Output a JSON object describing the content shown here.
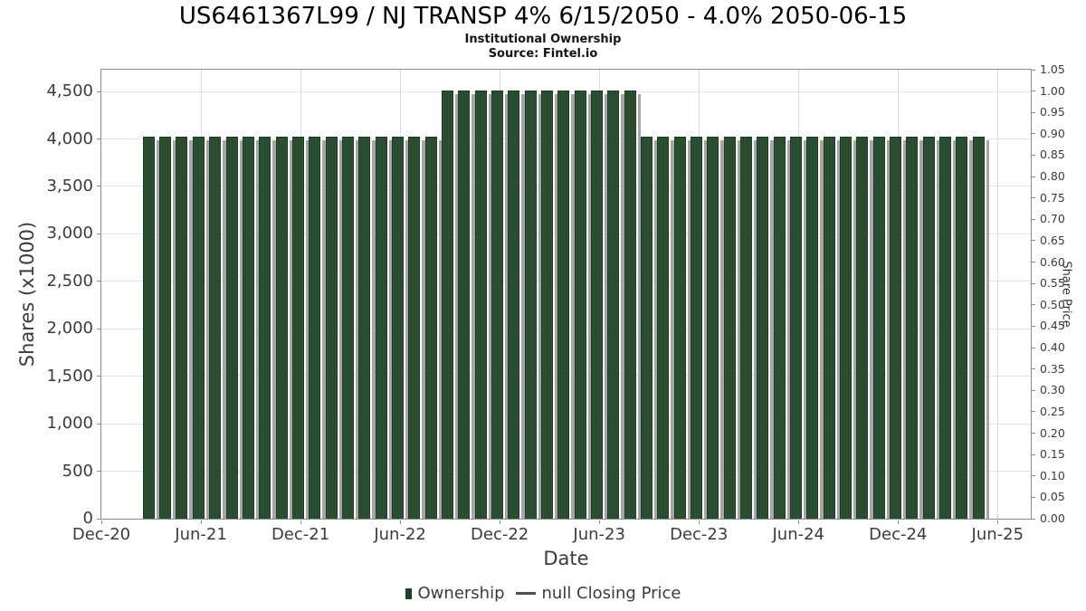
{
  "header": {
    "title": "US6461367L99 / NJ TRANSP 4% 6/15/2050 - 4.0% 2050-06-15",
    "subtitle": "Institutional Ownership",
    "source": "Source: Fintel.io"
  },
  "chart_data": {
    "type": "bar",
    "title": "US6461367L99 / NJ TRANSP 4% 6/15/2050 - 4.0% 2050-06-15",
    "subtitle": "Institutional Ownership",
    "source": "Source: Fintel.io",
    "xlabel": "Date",
    "ylabel_left": "Shares (x1000)",
    "ylabel_right": "Share Price",
    "grid": true,
    "legend_position": "bottom-center",
    "x_axis": {
      "tick_labels": [
        "Dec-20",
        "Jun-21",
        "Dec-21",
        "Jun-22",
        "Dec-22",
        "Jun-23",
        "Dec-23",
        "Jun-24",
        "Dec-24",
        "Jun-25"
      ],
      "tick_month_index": [
        0,
        6,
        12,
        18,
        24,
        30,
        36,
        42,
        48,
        54
      ],
      "months_span": 56
    },
    "y_axis_left": {
      "lim": [
        0,
        4730
      ],
      "tick_values": [
        0,
        500,
        1000,
        1500,
        2000,
        2500,
        3000,
        3500,
        4000,
        4500
      ],
      "tick_labels": [
        "0",
        "500",
        "1,000",
        "1,500",
        "2,000",
        "2,500",
        "3,000",
        "3,500",
        "4,000",
        "4,500"
      ]
    },
    "y_axis_right": {
      "lim": [
        0,
        1.05
      ],
      "tick_values": [
        0,
        0.05,
        0.1,
        0.15,
        0.2,
        0.25,
        0.3,
        0.35,
        0.4,
        0.45,
        0.5,
        0.55,
        0.6,
        0.65,
        0.7,
        0.75,
        0.8,
        0.85,
        0.9,
        0.95,
        1.0,
        1.05
      ],
      "tick_labels": [
        "0.00",
        "0.05",
        "0.10",
        "0.15",
        "0.20",
        "0.25",
        "0.30",
        "0.35",
        "0.40",
        "0.45",
        "0.50",
        "0.55",
        "0.60",
        "0.65",
        "0.70",
        "0.75",
        "0.80",
        "0.85",
        "0.90",
        "0.95",
        "1.00",
        "1.05"
      ]
    },
    "bar_start_month_index": 3,
    "categories": [
      "Mar-21",
      "Apr-21",
      "May-21",
      "Jun-21",
      "Jul-21",
      "Aug-21",
      "Sep-21",
      "Oct-21",
      "Nov-21",
      "Dec-21",
      "Jan-22",
      "Feb-22",
      "Mar-22",
      "Apr-22",
      "May-22",
      "Jun-22",
      "Jul-22",
      "Aug-22",
      "Sep-22",
      "Oct-22",
      "Nov-22",
      "Dec-22",
      "Jan-23",
      "Feb-23",
      "Mar-23",
      "Apr-23",
      "May-23",
      "Jun-23",
      "Jul-23",
      "Aug-23",
      "Sep-23",
      "Oct-23",
      "Nov-23",
      "Dec-23",
      "Jan-24",
      "Feb-24",
      "Mar-24",
      "Apr-24",
      "May-24",
      "Jun-24",
      "Jul-24",
      "Aug-24",
      "Sep-24",
      "Oct-24",
      "Nov-24",
      "Dec-24",
      "Jan-25",
      "Feb-25",
      "Mar-25",
      "Apr-25",
      "May-25"
    ],
    "series": [
      {
        "name": "Ownership",
        "type": "bar",
        "color": "#2c5132",
        "values": [
          4020,
          4020,
          4020,
          4020,
          4020,
          4020,
          4020,
          4020,
          4020,
          4020,
          4020,
          4020,
          4020,
          4020,
          4020,
          4020,
          4020,
          4020,
          4510,
          4510,
          4510,
          4510,
          4510,
          4510,
          4510,
          4510,
          4510,
          4510,
          4510,
          4510,
          4020,
          4020,
          4020,
          4020,
          4020,
          4020,
          4020,
          4020,
          4020,
          4020,
          4020,
          4020,
          4020,
          4020,
          4020,
          4020,
          4020,
          4020,
          4020,
          4020,
          4020
        ]
      },
      {
        "name": "null Closing Price",
        "type": "line",
        "color": "#4d4d4d",
        "values": []
      }
    ]
  },
  "colors": {
    "bar_fill": "#2c5132",
    "bar_stripe": "#24462a",
    "bar_edge": "#1c3a21",
    "bar_shadow": "#a6a6a6",
    "grid_horizontal": "#e4e4e4",
    "grid_vertical": "#dadada",
    "axis": "#8a8a8a",
    "text": "#3b3b3b",
    "legend_swatch": "#1f4124",
    "legend_line": "#4d4d4d"
  }
}
